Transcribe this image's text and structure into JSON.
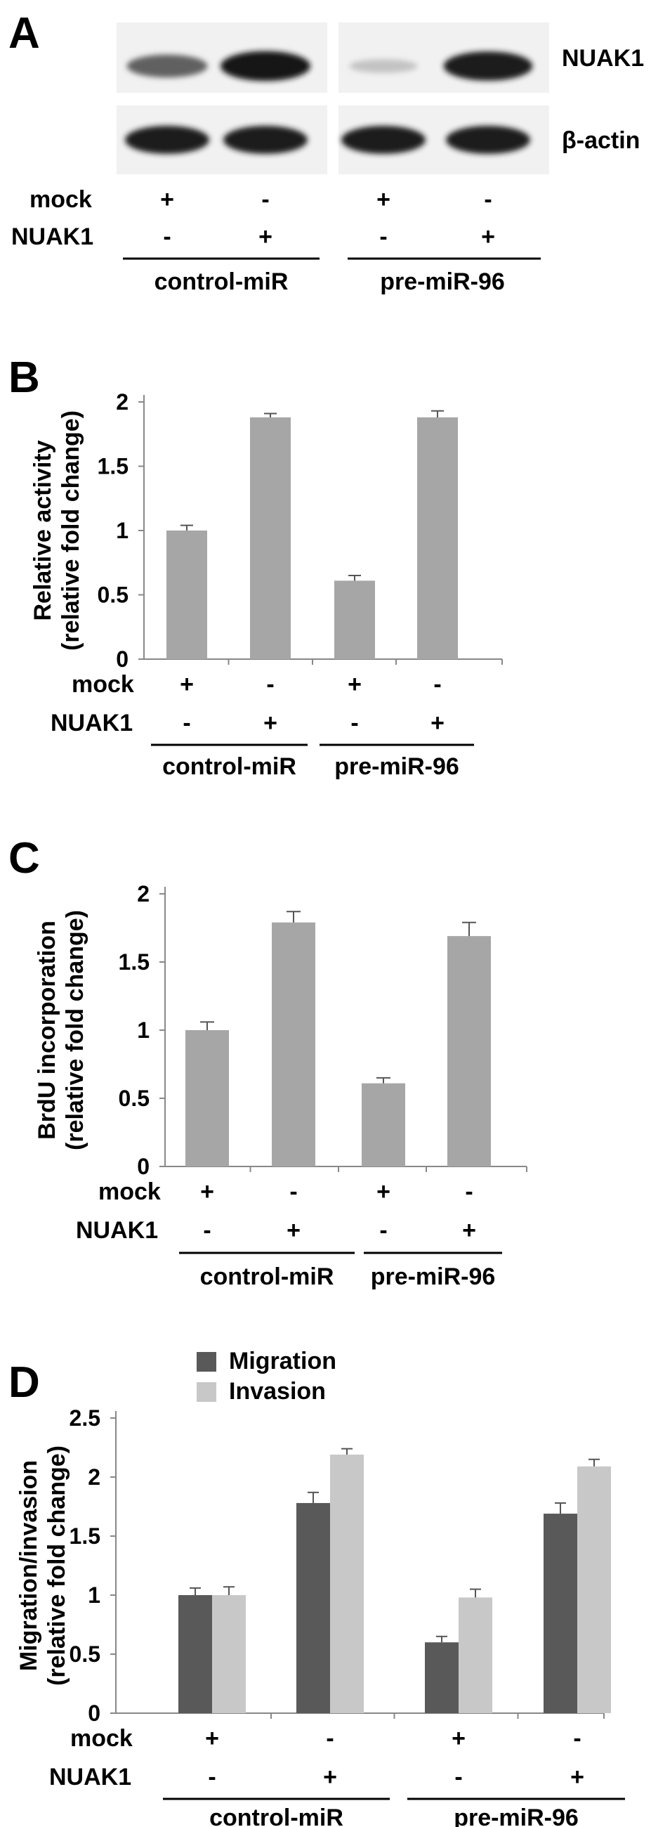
{
  "panelA": {
    "letter": "A",
    "bands": [
      "NUAK1",
      "β-actin"
    ],
    "rows": [
      {
        "label": "mock",
        "values": [
          "+",
          "-",
          "+",
          "-"
        ]
      },
      {
        "label": "NUAK1",
        "values": [
          "-",
          "+",
          "-",
          "+"
        ]
      }
    ],
    "groups": [
      "control-miR",
      "pre-miR-96"
    ],
    "intensities": {
      "NUAK1": [
        0.62,
        0.95,
        0.18,
        0.92
      ],
      "β-actin": [
        0.92,
        0.92,
        0.92,
        0.92
      ]
    }
  },
  "chart_data": [
    {
      "type": "bar",
      "letter": "B",
      "ylabel": [
        "Relative activity",
        "(relative fold change)"
      ],
      "ylim": [
        0,
        2
      ],
      "yticks": [
        "0",
        "0.5",
        "1",
        "1.5",
        "2"
      ],
      "categories": [
        "1",
        "2",
        "3",
        "4"
      ],
      "values": [
        1.0,
        1.88,
        0.61,
        1.88
      ],
      "errors": [
        0.04,
        0.03,
        0.04,
        0.05
      ],
      "color": "#a6a6a6",
      "rows": [
        {
          "label": "mock",
          "values": [
            "+",
            "-",
            "+",
            "-"
          ]
        },
        {
          "label": "NUAK1",
          "values": [
            "-",
            "+",
            "-",
            "+"
          ]
        }
      ],
      "groups": [
        "control-miR",
        "pre-miR-96"
      ]
    },
    {
      "type": "bar",
      "letter": "C",
      "ylabel": [
        "BrdU incorporation",
        "(relative fold change)"
      ],
      "ylim": [
        0,
        2
      ],
      "yticks": [
        "0",
        "0.5",
        "1",
        "1.5",
        "2"
      ],
      "categories": [
        "1",
        "2",
        "3",
        "4"
      ],
      "values": [
        1.0,
        1.79,
        0.61,
        1.69
      ],
      "errors": [
        0.06,
        0.08,
        0.04,
        0.1
      ],
      "color": "#a6a6a6",
      "rows": [
        {
          "label": "mock",
          "values": [
            "+",
            "-",
            "+",
            "-"
          ]
        },
        {
          "label": "NUAK1",
          "values": [
            "-",
            "+",
            "-",
            "+"
          ]
        }
      ],
      "groups": [
        "control-miR",
        "pre-miR-96"
      ]
    },
    {
      "type": "bar",
      "letter": "D",
      "ylabel": [
        "Migration/invasion",
        "(relative fold change)"
      ],
      "ylim": [
        0,
        2.5
      ],
      "yticks": [
        "0",
        "0.5",
        "1",
        "1.5",
        "2",
        "2.5"
      ],
      "categories": [
        "1",
        "2",
        "3",
        "4"
      ],
      "series": [
        {
          "name": "Migration",
          "color": "#595959",
          "values": [
            1.0,
            1.78,
            0.6,
            1.69
          ],
          "errors": [
            0.06,
            0.09,
            0.05,
            0.09
          ]
        },
        {
          "name": "Invasion",
          "color": "#c8c8c8",
          "values": [
            1.0,
            2.19,
            0.98,
            2.09
          ],
          "errors": [
            0.07,
            0.05,
            0.07,
            0.06
          ]
        }
      ],
      "legend": "top-left",
      "rows": [
        {
          "label": "mock",
          "values": [
            "+",
            "-",
            "+",
            "-"
          ]
        },
        {
          "label": "NUAK1",
          "values": [
            "-",
            "+",
            "-",
            "+"
          ]
        }
      ],
      "groups": [
        "control-miR",
        "pre-miR-96"
      ]
    }
  ]
}
